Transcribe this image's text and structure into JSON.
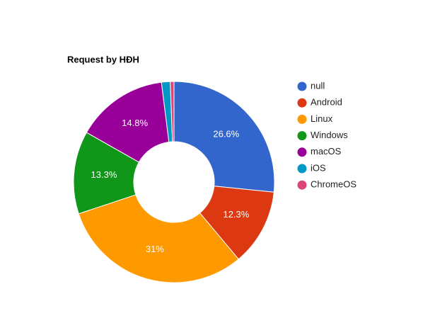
{
  "chart_data": {
    "type": "donut",
    "title": "Request by HĐH",
    "categories": [
      "null",
      "Android",
      "Linux",
      "Windows",
      "macOS",
      "iOS",
      "ChromeOS"
    ],
    "values": [
      26.6,
      12.3,
      31,
      13.3,
      14.8,
      1.4,
      0.6
    ],
    "value_labels": [
      "26.6%",
      "12.3%",
      "31%",
      "13.3%",
      "14.8%",
      null,
      null
    ],
    "colors": [
      "#3366cc",
      "#dc3912",
      "#ff9900",
      "#109618",
      "#990099",
      "#0099c6",
      "#dd4477"
    ],
    "legend": "right"
  }
}
